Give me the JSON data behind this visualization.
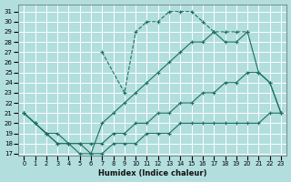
{
  "xlabel": "Humidex (Indice chaleur)",
  "bg_color": "#b2dede",
  "grid_color": "#ffffff",
  "line_color": "#1a7060",
  "xlim": [
    -0.5,
    23.5
  ],
  "ylim_min": 16.8,
  "ylim_max": 31.7,
  "yticks": [
    17,
    18,
    19,
    20,
    21,
    22,
    23,
    24,
    25,
    26,
    27,
    28,
    29,
    30,
    31
  ],
  "xticks": [
    0,
    1,
    2,
    3,
    4,
    5,
    6,
    7,
    8,
    9,
    10,
    11,
    12,
    13,
    14,
    15,
    16,
    17,
    18,
    19,
    20,
    21,
    22,
    23
  ],
  "series": [
    {
      "x": [
        7,
        9,
        10,
        11,
        12,
        13,
        14,
        15,
        16,
        17,
        18,
        19,
        20
      ],
      "y": [
        27,
        23,
        29,
        30,
        30,
        31,
        31,
        31,
        30,
        29,
        29,
        29,
        29
      ],
      "linestyle": "--"
    },
    {
      "x": [
        0,
        1,
        2,
        3,
        4,
        5,
        6,
        7,
        8,
        9,
        10,
        11,
        12,
        13,
        14,
        15,
        16,
        17,
        18,
        19,
        20,
        21,
        22,
        23
      ],
      "y": [
        21,
        20,
        19,
        19,
        18,
        18,
        17,
        20,
        21,
        22,
        23,
        24,
        25,
        26,
        27,
        28,
        28,
        29,
        28,
        28,
        29,
        25,
        24,
        21
      ],
      "linestyle": "-"
    },
    {
      "x": [
        0,
        1,
        2,
        3,
        4,
        5,
        6,
        7,
        8,
        9,
        10,
        11,
        12,
        13,
        14,
        15,
        16,
        17,
        18,
        19,
        20,
        21,
        22,
        23
      ],
      "y": [
        21,
        20,
        19,
        18,
        18,
        18,
        18,
        18,
        19,
        19,
        20,
        20,
        21,
        21,
        22,
        22,
        23,
        23,
        24,
        24,
        25,
        25,
        24,
        21
      ],
      "linestyle": "-"
    },
    {
      "x": [
        0,
        1,
        2,
        3,
        4,
        5,
        6,
        7,
        8,
        9,
        10,
        11,
        12,
        13,
        14,
        15,
        16,
        17,
        18,
        19,
        20,
        21,
        22,
        23
      ],
      "y": [
        21,
        20,
        19,
        18,
        18,
        17,
        17,
        17,
        18,
        18,
        18,
        19,
        19,
        19,
        20,
        20,
        20,
        20,
        20,
        20,
        20,
        20,
        21,
        21
      ],
      "linestyle": "-"
    }
  ]
}
